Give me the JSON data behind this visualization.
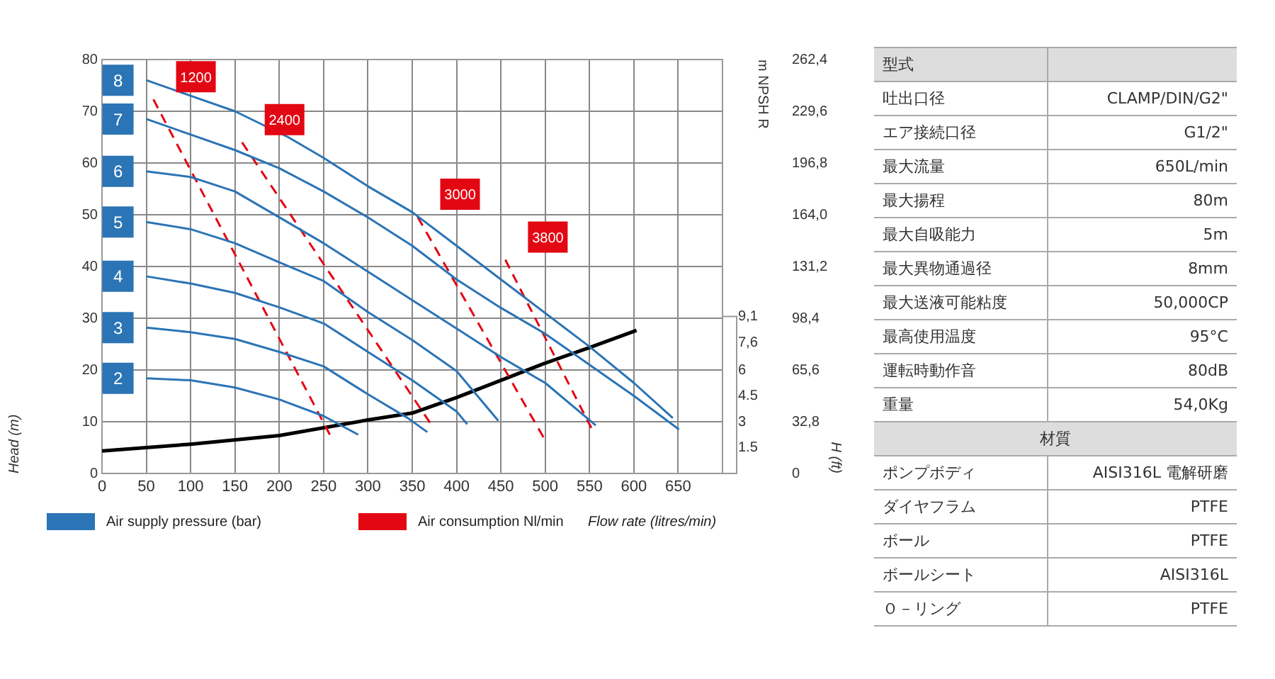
{
  "chart_data": [
    {
      "type": "line",
      "xlabel": "Flow rate (litres/min)",
      "ylabel": "Head (m)",
      "y2label": "H (ft)",
      "y3label": "m NPSH R",
      "xlim": [
        0,
        700
      ],
      "xticks": [
        0,
        50,
        100,
        150,
        200,
        250,
        300,
        350,
        400,
        450,
        500,
        550,
        600,
        650
      ],
      "ylim": [
        0,
        80
      ],
      "yticks": [
        0,
        10,
        20,
        30,
        40,
        50,
        60,
        70,
        80
      ],
      "y2lim": [
        0,
        262.4
      ],
      "y2ticks": [
        0,
        {
          "value": 32.8,
          "label": "32,8"
        },
        {
          "value": 65.6,
          "label": "65,6"
        },
        {
          "value": 98.4,
          "label": "98,4"
        },
        {
          "value": 131.2,
          "label": "131,2"
        },
        {
          "value": 164,
          "label": "164,0"
        },
        {
          "value": 196.8,
          "label": "196,8"
        },
        {
          "value": 229.6,
          "label": "229,6"
        },
        {
          "value": 262.4,
          "label": "262,4"
        }
      ],
      "y3lim": [
        0,
        24
      ],
      "y3ticks": [
        1.5,
        3,
        4.5,
        6,
        {
          "value": 7.6,
          "label": "7,6"
        },
        {
          "value": 9.1,
          "label": "9,1"
        }
      ],
      "grid": true,
      "annotations": [
        "Air supply pressure (bar)",
        "Air consumption Nl/min"
      ],
      "series": [
        {
          "name": "8",
          "color": "#2b74b5",
          "line_style": "solid",
          "x": [
            50,
            100,
            150,
            210,
            250,
            300,
            350,
            400,
            450,
            500,
            550,
            600,
            644
          ],
          "values": [
            76,
            73,
            70,
            65,
            61,
            55.5,
            50.5,
            44,
            37.5,
            31,
            24.5,
            17.5,
            10.7
          ]
        },
        {
          "name": "7",
          "color": "#2b74b5",
          "line_style": "solid",
          "x": [
            50,
            100,
            150,
            200,
            250,
            300,
            350,
            400,
            450,
            500,
            550,
            600,
            651
          ],
          "values": [
            68.5,
            65.5,
            62.5,
            59,
            54.5,
            49.5,
            44,
            37.5,
            32,
            27,
            21,
            15,
            8.5
          ]
        },
        {
          "name": "6",
          "color": "#2b74b5",
          "line_style": "solid",
          "x": [
            50,
            100,
            150,
            200,
            250,
            300,
            350,
            400,
            450,
            500,
            557
          ],
          "values": [
            58.4,
            57.3,
            54.5,
            49.5,
            44.5,
            39,
            33.5,
            28,
            22.5,
            17.5,
            9.3
          ]
        },
        {
          "name": "5",
          "color": "#2b74b5",
          "line_style": "solid",
          "x": [
            50,
            100,
            150,
            200,
            250,
            300,
            350,
            400,
            447
          ],
          "values": [
            48.6,
            47.2,
            44.5,
            40.8,
            37.2,
            31.2,
            25.8,
            19.8,
            10.2
          ]
        },
        {
          "name": "4",
          "color": "#2b74b5",
          "line_style": "solid",
          "x": [
            50,
            100,
            150,
            200,
            250,
            300,
            350,
            400,
            412
          ],
          "values": [
            38.1,
            36.7,
            34.9,
            32.1,
            29,
            23.5,
            18,
            12,
            9.5
          ]
        },
        {
          "name": "3",
          "color": "#2b74b5",
          "line_style": "solid",
          "x": [
            50,
            100,
            150,
            200,
            250,
            300,
            345,
            367
          ],
          "values": [
            28.2,
            27.3,
            26,
            23.5,
            20.7,
            15.3,
            10.7,
            8
          ]
        },
        {
          "name": "2",
          "color": "#2b74b5",
          "line_style": "solid",
          "x": [
            50,
            100,
            150,
            200,
            250,
            289
          ],
          "values": [
            18.4,
            18,
            16.6,
            14.3,
            11.1,
            7.5
          ]
        },
        {
          "name": "1200",
          "color": "#e30613",
          "line_style": "dashed",
          "x": [
            58,
            257
          ],
          "values": [
            72.3,
            7.5
          ]
        },
        {
          "name": "2400",
          "color": "#e30613",
          "line_style": "dashed",
          "x": [
            158,
            370
          ],
          "values": [
            64,
            9.8
          ]
        },
        {
          "name": "3000",
          "color": "#e30613",
          "line_style": "dashed",
          "x": [
            356,
            498
          ],
          "values": [
            49.6,
            7
          ]
        },
        {
          "name": "3800",
          "color": "#e30613",
          "line_style": "dashed",
          "x": [
            455,
            552
          ],
          "values": [
            41.3,
            8.8
          ]
        },
        {
          "color": "#000000",
          "line_style": "solid",
          "axis": "y3",
          "x": [
            0,
            100,
            200,
            300,
            350,
            400,
            450,
            500,
            550,
            603
          ],
          "values": [
            1.3,
            1.7,
            2.2,
            3.1,
            3.5,
            4.4,
            5.4,
            6.4,
            7.3,
            8.3
          ]
        }
      ]
    },
    {
      "type": "other",
      "y_categories": [
        "型式",
        "吐出口径",
        "エア接続口径",
        "最大流量",
        "最大揚程",
        "最大自吸能力",
        "最大異物通過径",
        "最大送液可能粘度",
        "最高使用温度",
        "運転時動作音",
        "重量",
        "材質",
        "ポンプボディ",
        "ダイヤフラム",
        "ボール",
        "ボールシート",
        "Ｏ－リング"
      ],
      "cell_labels": [
        [
          null
        ],
        [
          "CLAMP/DIN/G2\""
        ],
        [
          "G1/2\""
        ],
        [
          "650L/min"
        ],
        [
          "80m"
        ],
        [
          "5m"
        ],
        [
          "8mm"
        ],
        [
          "50,000CP"
        ],
        [
          "95°C"
        ],
        [
          "80dB"
        ],
        [
          "54,0Kg"
        ],
        [
          null
        ],
        [
          "AISI316L 電解研磨"
        ],
        [
          "PTFE"
        ],
        [
          "PTFE"
        ],
        [
          "AISI316L"
        ],
        [
          "PTFE"
        ]
      ]
    }
  ]
}
